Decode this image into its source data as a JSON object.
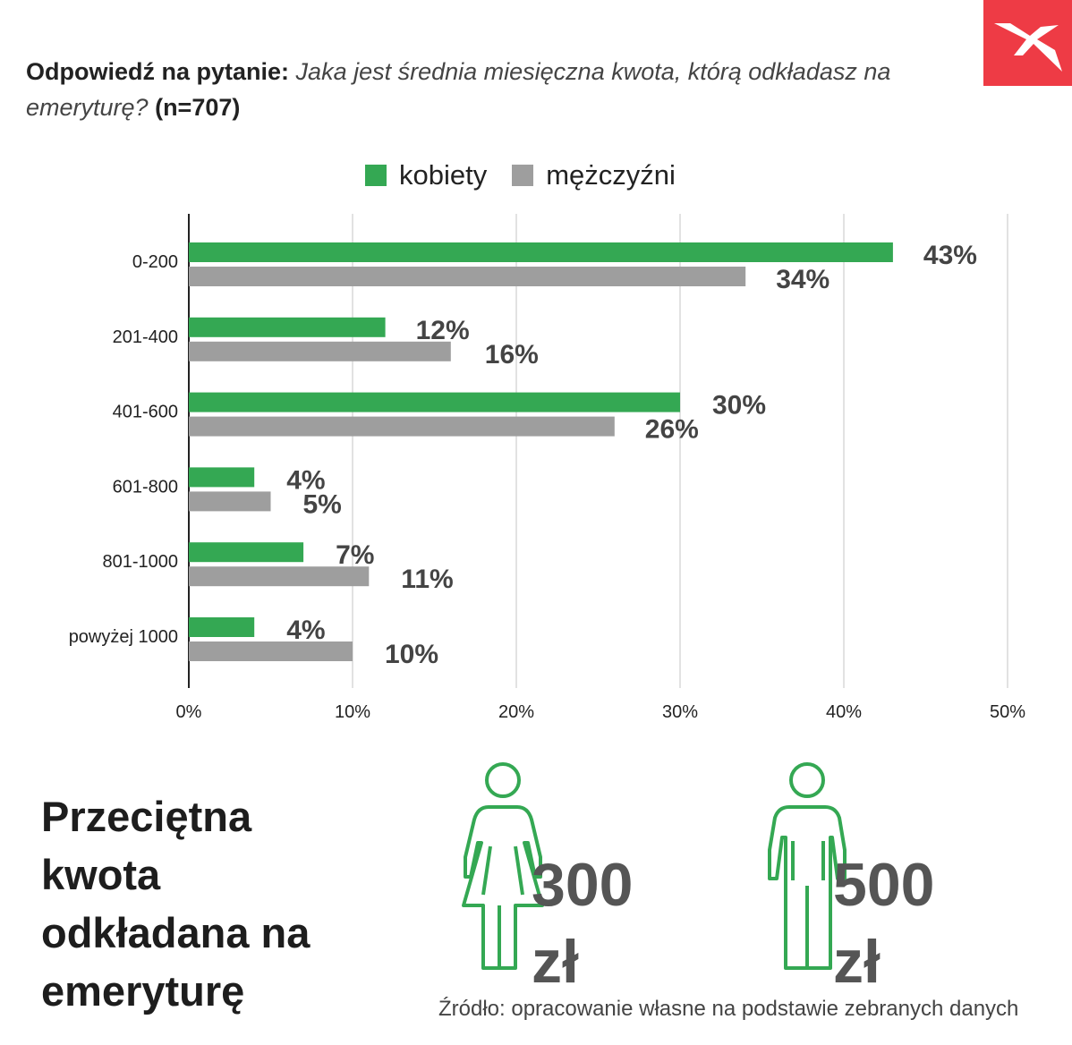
{
  "question": {
    "lead": "Odpowiedź na pytanie:",
    "text": "Jaka jest średnia miesięczna kwota, którą odkładasz na emeryturę?",
    "sample": "(n=707)"
  },
  "colors": {
    "kobiety": "#34a853",
    "mezczyzni": "#9e9e9e",
    "value_label": "#444444",
    "logo": "#ee3b45",
    "figure_outline": "#34a853"
  },
  "chart_data": {
    "type": "bar",
    "orientation": "horizontal",
    "categories": [
      "0-200",
      "201-400",
      "401-600",
      "601-800",
      "801-1000",
      "powyżej 1000"
    ],
    "series": [
      {
        "name": "kobiety",
        "values": [
          43,
          12,
          30,
          4,
          7,
          4
        ]
      },
      {
        "name": "mężczyźni",
        "values": [
          34,
          16,
          26,
          5,
          11,
          10
        ]
      }
    ],
    "value_labels": [
      [
        "43%",
        "12%",
        "30%",
        "4%",
        "7%",
        "4%"
      ],
      [
        "34%",
        "16%",
        "26%",
        "5%",
        "11%",
        "10%"
      ]
    ],
    "xlim": [
      0,
      50
    ],
    "x_ticks": [
      0,
      10,
      20,
      30,
      40,
      50
    ],
    "x_tick_labels": [
      "0%",
      "10%",
      "20%",
      "30%",
      "40%",
      "50%"
    ],
    "grid": true,
    "legend_position": "top"
  },
  "summary": {
    "title_lines": [
      "Przeciętna",
      "kwota",
      "odkładana na",
      "emeryturę"
    ],
    "women": {
      "number": "300",
      "unit": "zł",
      "icon": "woman-icon"
    },
    "men": {
      "number": "500",
      "unit": "zł",
      "icon": "man-icon"
    }
  },
  "source": "Źródło: opracowanie własne na podstawie zebranych danych",
  "logo_icon": "x-logo-icon"
}
